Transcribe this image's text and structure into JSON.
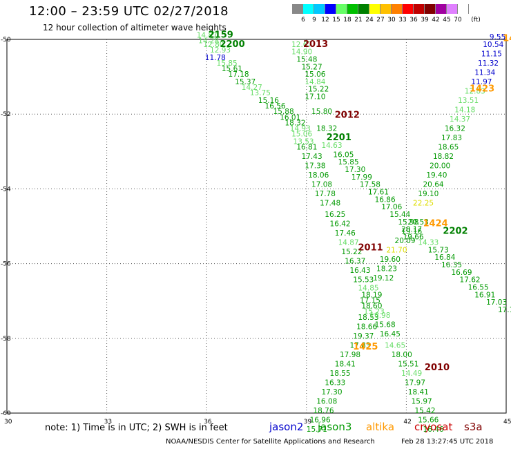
{
  "header": {
    "title": "12:00  –  23:59  UTC  02/27/2018",
    "subtitle": "12 hour collection of altimeter wave heights"
  },
  "legend": {
    "unit": "(ft)",
    "bins": [
      {
        "label": "3",
        "color": "#888888"
      },
      {
        "label": "6",
        "color": "#00ffff"
      },
      {
        "label": "9",
        "color": "#00c8ff"
      },
      {
        "label": "12",
        "color": "#0000ff"
      },
      {
        "label": "15",
        "color": "#66ff66"
      },
      {
        "label": "18",
        "color": "#00c000"
      },
      {
        "label": "21",
        "color": "#008000"
      },
      {
        "label": "24",
        "color": "#ffff00"
      },
      {
        "label": "27",
        "color": "#ffc000"
      },
      {
        "label": "30",
        "color": "#ff8000"
      },
      {
        "label": "33",
        "color": "#ff0000"
      },
      {
        "label": "36",
        "color": "#c00000"
      },
      {
        "label": "39",
        "color": "#800000"
      },
      {
        "label": "42",
        "color": "#a000a0"
      },
      {
        "label": "45",
        "color": "#e080ff"
      },
      {
        "label": "70",
        "color": "#ffffff"
      }
    ]
  },
  "map": {
    "lon_range": [
      30,
      45
    ],
    "lat_range": [
      -60,
      -50
    ],
    "lon_ticks": [
      "30",
      "33",
      "36",
      "39",
      "42",
      "45"
    ],
    "lat_ticks": [
      "-50",
      "-52",
      "-54",
      "-56",
      "-58",
      "-60"
    ],
    "grid": "dotted"
  },
  "pass_labels": [
    {
      "text": "2159",
      "color": "#008000",
      "lon": 36.05,
      "lat": -49.95
    },
    {
      "text": "2200",
      "color": "#008000",
      "lon": 36.4,
      "lat": -50.2
    },
    {
      "text": "2013",
      "color": "#800000",
      "lon": 38.9,
      "lat": -50.2
    },
    {
      "text": "1423",
      "color": "#ff9900",
      "lon": 44.9,
      "lat": -50.05
    },
    {
      "text": "1423",
      "color": "#ff9900",
      "lon": 43.9,
      "lat": -51.4
    },
    {
      "text": "2012",
      "color": "#800000",
      "lon": 39.85,
      "lat": -52.1
    },
    {
      "text": "2201",
      "color": "#008000",
      "lon": 39.6,
      "lat": -52.7
    },
    {
      "text": "1424",
      "color": "#ff9900",
      "lon": 42.5,
      "lat": -55.0
    },
    {
      "text": "2202",
      "color": "#008000",
      "lon": 43.1,
      "lat": -55.2
    },
    {
      "text": "2011",
      "color": "#800000",
      "lon": 40.55,
      "lat": -55.65
    },
    {
      "text": "1425",
      "color": "#ff9900",
      "lon": 40.4,
      "lat": -58.3
    },
    {
      "text": "2010",
      "color": "#800000",
      "lon": 42.55,
      "lat": -58.85
    }
  ],
  "observations": [
    {
      "v": "14.87",
      "lon": 35.7,
      "lat": -49.95,
      "color": "#66dd66"
    },
    {
      "v": "14.28",
      "lon": 35.75,
      "lat": -50.1,
      "color": "#66dd66"
    },
    {
      "v": "12.80",
      "lon": 35.9,
      "lat": -50.2,
      "color": "#66dd66"
    },
    {
      "v": "12.93",
      "lon": 36.1,
      "lat": -50.35,
      "color": "#66dd66"
    },
    {
      "v": "11.78",
      "lon": 35.95,
      "lat": -50.55,
      "color": "#0000cc"
    },
    {
      "v": "15.85",
      "lon": 36.3,
      "lat": -50.7,
      "color": "#66dd66"
    },
    {
      "v": "15.61",
      "lon": 36.45,
      "lat": -50.85,
      "color": "#009900"
    },
    {
      "v": "17.18",
      "lon": 36.65,
      "lat": -51.0,
      "color": "#009900"
    },
    {
      "v": "15.37",
      "lon": 36.85,
      "lat": -51.2,
      "color": "#009900"
    },
    {
      "v": "14.27",
      "lon": 37.05,
      "lat": -51.35,
      "color": "#66dd66"
    },
    {
      "v": "13.75",
      "lon": 37.3,
      "lat": -51.5,
      "color": "#66dd66"
    },
    {
      "v": "15.16",
      "lon": 37.55,
      "lat": -51.7,
      "color": "#009900"
    },
    {
      "v": "16.56",
      "lon": 37.75,
      "lat": -51.85,
      "color": "#009900"
    },
    {
      "v": "15.88",
      "lon": 38.0,
      "lat": -52.0,
      "color": "#009900"
    },
    {
      "v": "16.01",
      "lon": 38.2,
      "lat": -52.15,
      "color": "#009900"
    },
    {
      "v": "18.32",
      "lon": 38.35,
      "lat": -52.3,
      "color": "#009900"
    },
    {
      "v": "14.93",
      "lon": 38.5,
      "lat": -52.45,
      "color": "#66dd66"
    },
    {
      "v": "15.06",
      "lon": 38.55,
      "lat": -52.6,
      "color": "#66dd66"
    },
    {
      "v": "13.53",
      "lon": 38.6,
      "lat": -52.8,
      "color": "#66dd66"
    },
    {
      "v": "16.81",
      "lon": 38.7,
      "lat": -52.95,
      "color": "#009900"
    },
    {
      "v": "17.43",
      "lon": 38.85,
      "lat": -53.2,
      "color": "#009900"
    },
    {
      "v": "17.38",
      "lon": 38.95,
      "lat": -53.45,
      "color": "#009900"
    },
    {
      "v": "18.06",
      "lon": 39.05,
      "lat": -53.7,
      "color": "#009900"
    },
    {
      "v": "17.08",
      "lon": 39.15,
      "lat": -53.95,
      "color": "#009900"
    },
    {
      "v": "17.78",
      "lon": 39.25,
      "lat": -54.2,
      "color": "#009900"
    },
    {
      "v": "17.48",
      "lon": 39.4,
      "lat": -54.45,
      "color": "#009900"
    },
    {
      "v": "16.25",
      "lon": 39.55,
      "lat": -54.75,
      "color": "#009900"
    },
    {
      "v": "16.42",
      "lon": 39.7,
      "lat": -55.0,
      "color": "#009900"
    },
    {
      "v": "17.46",
      "lon": 39.85,
      "lat": -55.25,
      "color": "#009900"
    },
    {
      "v": "14.87",
      "lon": 39.95,
      "lat": -55.5,
      "color": "#66dd66"
    },
    {
      "v": "15.22",
      "lon": 40.05,
      "lat": -55.75,
      "color": "#009900"
    },
    {
      "v": "16.37",
      "lon": 40.15,
      "lat": -56.0,
      "color": "#009900"
    },
    {
      "v": "16.43",
      "lon": 40.3,
      "lat": -56.25,
      "color": "#009900"
    },
    {
      "v": "15.53",
      "lon": 40.4,
      "lat": -56.5,
      "color": "#009900"
    },
    {
      "v": "14.85",
      "lon": 40.55,
      "lat": -56.72,
      "color": "#66dd66"
    },
    {
      "v": "18.19",
      "lon": 40.65,
      "lat": -56.9,
      "color": "#009900"
    },
    {
      "v": "17.15",
      "lon": 40.6,
      "lat": -57.05,
      "color": "#009900"
    },
    {
      "v": "18.60",
      "lon": 40.65,
      "lat": -57.2,
      "color": "#009900"
    },
    {
      "v": "15.23",
      "lon": 40.72,
      "lat": -57.35,
      "color": "#66dd66"
    },
    {
      "v": "18.53",
      "lon": 40.55,
      "lat": -57.5,
      "color": "#009900"
    },
    {
      "v": "18.66",
      "lon": 40.5,
      "lat": -57.75,
      "color": "#009900"
    },
    {
      "v": "19.37",
      "lon": 40.4,
      "lat": -58.0,
      "color": "#009900"
    },
    {
      "v": "17.83",
      "lon": 40.3,
      "lat": -58.25,
      "color": "#009900"
    },
    {
      "v": "17.98",
      "lon": 40.0,
      "lat": -58.5,
      "color": "#009900"
    },
    {
      "v": "18.41",
      "lon": 39.85,
      "lat": -58.75,
      "color": "#009900"
    },
    {
      "v": "18.55",
      "lon": 39.7,
      "lat": -59.0,
      "color": "#009900"
    },
    {
      "v": "16.33",
      "lon": 39.55,
      "lat": -59.25,
      "color": "#009900"
    },
    {
      "v": "17.30",
      "lon": 39.45,
      "lat": -59.5,
      "color": "#009900"
    },
    {
      "v": "16.08",
      "lon": 39.3,
      "lat": -59.75,
      "color": "#009900"
    },
    {
      "v": "18.76",
      "lon": 39.2,
      "lat": -60.0,
      "color": "#009900"
    },
    {
      "v": "16.96",
      "lon": 39.1,
      "lat": -60.25,
      "color": "#009900"
    },
    {
      "v": "15.71",
      "lon": 39.0,
      "lat": -60.5,
      "color": "#009900"
    },
    {
      "v": "12.67",
      "lon": 38.55,
      "lat": -50.2,
      "color": "#66dd66"
    },
    {
      "v": "14.90",
      "lon": 38.55,
      "lat": -50.4,
      "color": "#66dd66"
    },
    {
      "v": "15.48",
      "lon": 38.7,
      "lat": -50.6,
      "color": "#009900"
    },
    {
      "v": "15.27",
      "lon": 38.85,
      "lat": -50.8,
      "color": "#009900"
    },
    {
      "v": "15.06",
      "lon": 38.95,
      "lat": -51.0,
      "color": "#009900"
    },
    {
      "v": "14.84",
      "lon": 38.95,
      "lat": -51.2,
      "color": "#66dd66"
    },
    {
      "v": "15.22",
      "lon": 39.05,
      "lat": -51.4,
      "color": "#009900"
    },
    {
      "v": "17.10",
      "lon": 38.95,
      "lat": -51.6,
      "color": "#009900"
    },
    {
      "v": "15.80",
      "lon": 39.15,
      "lat": -52.0,
      "color": "#009900"
    },
    {
      "v": "18.32",
      "lon": 39.3,
      "lat": -52.45,
      "color": "#009900"
    },
    {
      "v": "14.63",
      "lon": 39.45,
      "lat": -52.9,
      "color": "#66dd66"
    },
    {
      "v": "16.05",
      "lon": 39.8,
      "lat": -53.15,
      "color": "#009900"
    },
    {
      "v": "15.85",
      "lon": 39.95,
      "lat": -53.35,
      "color": "#009900"
    },
    {
      "v": "17.30",
      "lon": 40.15,
      "lat": -53.55,
      "color": "#009900"
    },
    {
      "v": "17.99",
      "lon": 40.35,
      "lat": -53.75,
      "color": "#009900"
    },
    {
      "v": "17.58",
      "lon": 40.6,
      "lat": -53.95,
      "color": "#009900"
    },
    {
      "v": "17.61",
      "lon": 40.85,
      "lat": -54.15,
      "color": "#009900"
    },
    {
      "v": "16.86",
      "lon": 41.05,
      "lat": -54.35,
      "color": "#009900"
    },
    {
      "v": "17.06",
      "lon": 41.25,
      "lat": -54.55,
      "color": "#009900"
    },
    {
      "v": "15.44",
      "lon": 41.5,
      "lat": -54.75,
      "color": "#009900"
    },
    {
      "v": "15.98",
      "lon": 41.75,
      "lat": -54.95,
      "color": "#009900"
    },
    {
      "v": "20.17",
      "lon": 41.85,
      "lat": -55.15,
      "color": "#009900"
    },
    {
      "v": "19.66",
      "lon": 41.9,
      "lat": -55.35,
      "color": "#009900"
    },
    {
      "v": "14.33",
      "lon": 42.35,
      "lat": -55.5,
      "color": "#66dd66"
    },
    {
      "v": "15.73",
      "lon": 42.65,
      "lat": -55.7,
      "color": "#009900"
    },
    {
      "v": "16.84",
      "lon": 42.85,
      "lat": -55.9,
      "color": "#009900"
    },
    {
      "v": "16.35",
      "lon": 43.05,
      "lat": -56.1,
      "color": "#009900"
    },
    {
      "v": "16.69",
      "lon": 43.35,
      "lat": -56.3,
      "color": "#009900"
    },
    {
      "v": "17.62",
      "lon": 43.6,
      "lat": -56.5,
      "color": "#009900"
    },
    {
      "v": "16.55",
      "lon": 43.85,
      "lat": -56.7,
      "color": "#009900"
    },
    {
      "v": "16.91",
      "lon": 44.05,
      "lat": -56.9,
      "color": "#009900"
    },
    {
      "v": "17.03",
      "lon": 44.4,
      "lat": -57.1,
      "color": "#009900"
    },
    {
      "v": "17.1",
      "lon": 44.75,
      "lat": -57.3,
      "color": "#009900"
    },
    {
      "v": "9.55",
      "lon": 44.5,
      "lat": -50.0,
      "color": "#0000cc"
    },
    {
      "v": "10.54",
      "lon": 44.3,
      "lat": -50.2,
      "color": "#0000cc"
    },
    {
      "v": "11.15",
      "lon": 44.25,
      "lat": -50.45,
      "color": "#0000cc"
    },
    {
      "v": "11.32",
      "lon": 44.15,
      "lat": -50.7,
      "color": "#0000cc"
    },
    {
      "v": "11.34",
      "lon": 44.05,
      "lat": -50.95,
      "color": "#0000cc"
    },
    {
      "v": "11.97",
      "lon": 43.95,
      "lat": -51.2,
      "color": "#0000cc"
    },
    {
      "v": "12.83",
      "lon": 43.75,
      "lat": -51.45,
      "color": "#66dd66"
    },
    {
      "v": "13.51",
      "lon": 43.55,
      "lat": -51.7,
      "color": "#66dd66"
    },
    {
      "v": "14.18",
      "lon": 43.45,
      "lat": -51.95,
      "color": "#66dd66"
    },
    {
      "v": "14.37",
      "lon": 43.3,
      "lat": -52.2,
      "color": "#66dd66"
    },
    {
      "v": "16.32",
      "lon": 43.15,
      "lat": -52.45,
      "color": "#009900"
    },
    {
      "v": "17.83",
      "lon": 43.05,
      "lat": -52.7,
      "color": "#009900"
    },
    {
      "v": "18.65",
      "lon": 42.95,
      "lat": -52.95,
      "color": "#009900"
    },
    {
      "v": "18.82",
      "lon": 42.8,
      "lat": -53.2,
      "color": "#009900"
    },
    {
      "v": "20.00",
      "lon": 42.7,
      "lat": -53.45,
      "color": "#009900"
    },
    {
      "v": "19.40",
      "lon": 42.6,
      "lat": -53.7,
      "color": "#009900"
    },
    {
      "v": "20.64",
      "lon": 42.5,
      "lat": -53.95,
      "color": "#009900"
    },
    {
      "v": "19.10",
      "lon": 42.35,
      "lat": -54.2,
      "color": "#009900"
    },
    {
      "v": "22.25",
      "lon": 42.2,
      "lat": -54.45,
      "color": "#dddd00"
    },
    {
      "v": "20.53",
      "lon": 42.05,
      "lat": -54.95,
      "color": "#009900"
    },
    {
      "v": "19.16",
      "lon": 41.85,
      "lat": -55.2,
      "color": "#009900"
    },
    {
      "v": "20.09",
      "lon": 41.65,
      "lat": -55.45,
      "color": "#009900"
    },
    {
      "v": "21.70",
      "lon": 41.4,
      "lat": -55.7,
      "color": "#dddd00"
    },
    {
      "v": "19.60",
      "lon": 41.2,
      "lat": -55.95,
      "color": "#009900"
    },
    {
      "v": "18.23",
      "lon": 41.1,
      "lat": -56.2,
      "color": "#009900"
    },
    {
      "v": "19.12",
      "lon": 41.0,
      "lat": -56.45,
      "color": "#009900"
    },
    {
      "v": "16.98",
      "lon": 40.9,
      "lat": -57.45,
      "color": "#66dd66"
    },
    {
      "v": "15.68",
      "lon": 41.05,
      "lat": -57.7,
      "color": "#009900"
    },
    {
      "v": "16.45",
      "lon": 41.2,
      "lat": -57.95,
      "color": "#009900"
    },
    {
      "v": "14.65",
      "lon": 41.35,
      "lat": -58.25,
      "color": "#66dd66"
    },
    {
      "v": "18.00",
      "lon": 41.55,
      "lat": -58.5,
      "color": "#009900"
    },
    {
      "v": "15.51",
      "lon": 41.75,
      "lat": -58.75,
      "color": "#009900"
    },
    {
      "v": "14.49",
      "lon": 41.85,
      "lat": -59.0,
      "color": "#66dd66"
    },
    {
      "v": "17.97",
      "lon": 41.95,
      "lat": -59.25,
      "color": "#009900"
    },
    {
      "v": "18.41",
      "lon": 42.05,
      "lat": -59.5,
      "color": "#009900"
    },
    {
      "v": "15.97",
      "lon": 42.15,
      "lat": -59.75,
      "color": "#009900"
    },
    {
      "v": "15.42",
      "lon": 42.25,
      "lat": -60.0,
      "color": "#009900"
    },
    {
      "v": "15.66",
      "lon": 42.35,
      "lat": -60.25,
      "color": "#009900"
    },
    {
      "v": "16.46",
      "lon": 42.5,
      "lat": -60.5,
      "color": "#009900"
    }
  ],
  "footer": {
    "note": "note:  1) Time is in UTC;  2) SWH is in feet",
    "satellites": [
      {
        "name": "jason2",
        "color": "#0000cc"
      },
      {
        "name": "jason3",
        "color": "#009900"
      },
      {
        "name": "altika",
        "color": "#ff9900"
      },
      {
        "name": "cryosat",
        "color": "#cc0000"
      },
      {
        "name": "s3a",
        "color": "#800000"
      }
    ],
    "credit": "NOAA/NESDIS Center for Satellite Applications and Research",
    "timestamp": "Feb 28 13:27:45 UTC 2018"
  }
}
